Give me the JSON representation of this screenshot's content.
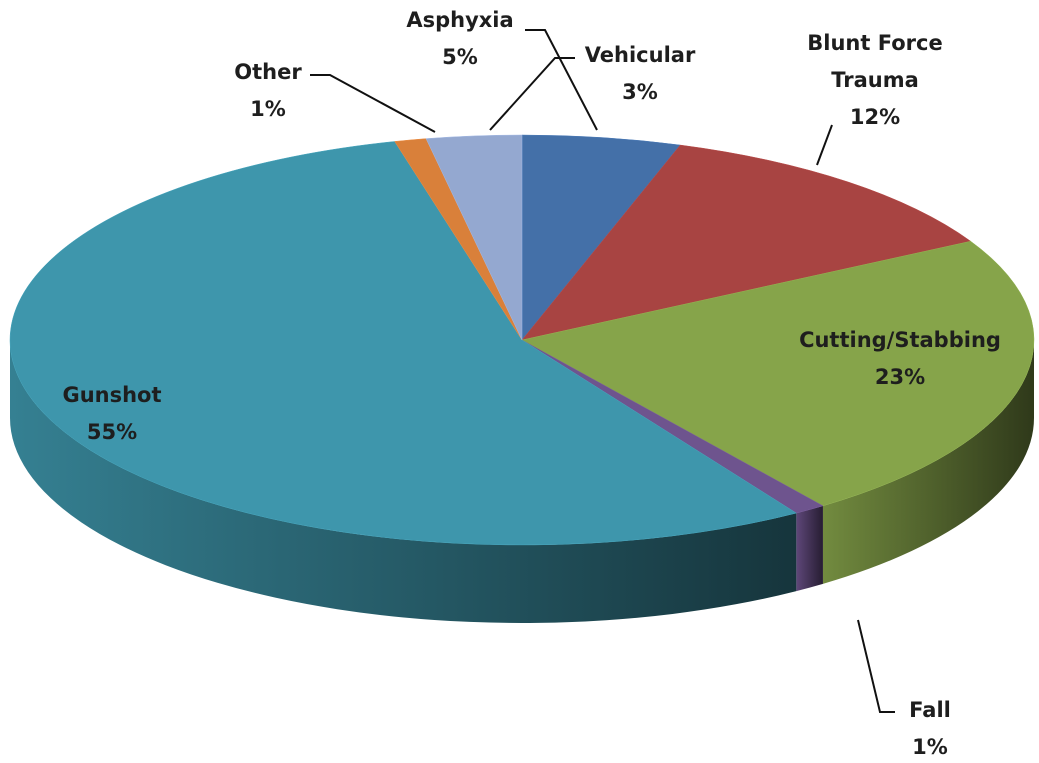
{
  "chart_data": {
    "type": "pie3d",
    "categories": [
      "Asphyxia",
      "Blunt Force Trauma",
      "Cutting/Stabbing",
      "Fall",
      "Gunshot",
      "Other",
      "Vehicular"
    ],
    "values": [
      5,
      12,
      23,
      1,
      55,
      1,
      3
    ],
    "value_labels": [
      "5%",
      "12%",
      "23%",
      "1%",
      "55%",
      "1%",
      "3%"
    ],
    "colors": [
      "#4470a8",
      "#a84442",
      "#86a44a",
      "#6e548e",
      "#3e96ac",
      "#d9803a",
      "#94a8d0"
    ]
  }
}
